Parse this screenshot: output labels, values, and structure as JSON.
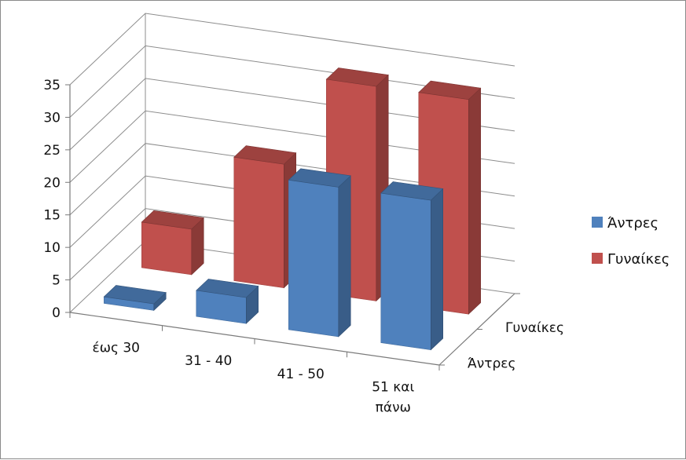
{
  "chart_data": {
    "type": "bar3d",
    "categories": [
      "έως 30",
      "31 - 40",
      "41 - 50",
      "51 και πάνω"
    ],
    "series": [
      {
        "name": "Άντρες",
        "color": "#4f81bd",
        "values": [
          1,
          4,
          23,
          23
        ]
      },
      {
        "name": "Γυναίκες",
        "color": "#c0504d",
        "values": [
          7,
          19,
          33,
          33
        ]
      }
    ],
    "ylim": [
      0,
      35
    ],
    "yticks": [
      0,
      5,
      10,
      15,
      20,
      25,
      30,
      35
    ],
    "depth_labels": [
      "Γυναίκες",
      "Άντρες"
    ],
    "legend": {
      "position": "right",
      "entries": [
        "Άντρες",
        "Γυναίκες"
      ]
    },
    "grid": true
  }
}
